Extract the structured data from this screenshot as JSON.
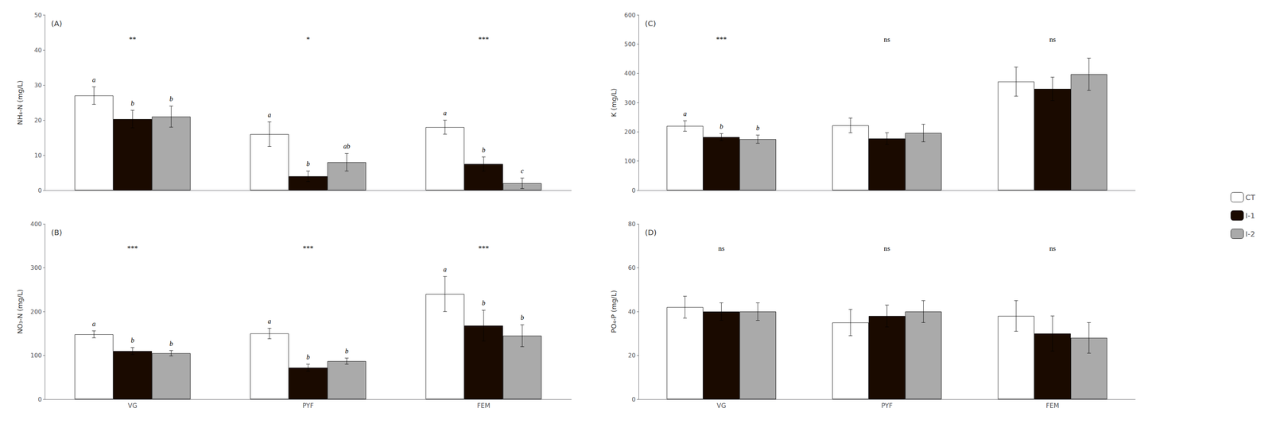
{
  "chart_data": [
    {
      "type": "bar",
      "title": "(A)",
      "ylabel": "NH₄-N (mg/L)",
      "categories": [
        null,
        null,
        null
      ],
      "series": [
        {
          "name": "CT",
          "color": "#FFFFFF",
          "values": [
            27.0,
            16.0,
            18.0
          ],
          "errors": [
            2.5,
            3.5,
            2.0
          ],
          "letters": [
            "a",
            "a",
            "a"
          ]
        },
        {
          "name": "I-1",
          "color": "#1a0a00",
          "values": [
            20.3,
            4.0,
            7.5
          ],
          "errors": [
            2.5,
            1.5,
            2.0
          ],
          "letters": [
            "b",
            "b",
            "b"
          ]
        },
        {
          "name": "I-2",
          "color": "#aaaaaa",
          "values": [
            21.0,
            8.0,
            2.0
          ],
          "errors": [
            3.0,
            2.5,
            1.5
          ],
          "letters": [
            "b",
            "ab",
            "c"
          ]
        }
      ],
      "significance": [
        "**",
        "*",
        "***"
      ],
      "ylim": [
        0,
        50
      ],
      "yticks": [
        0,
        10,
        20,
        30,
        40,
        50
      ],
      "grid": false,
      "legend": "right"
    },
    {
      "type": "bar",
      "title": "(B)",
      "ylabel": "NO₃-N (mg/L)",
      "categories": [
        "VG",
        "PYF",
        "FEM"
      ],
      "series": [
        {
          "name": "CT",
          "color": "#FFFFFF",
          "values": [
            148,
            150,
            240
          ],
          "errors": [
            8,
            12,
            40
          ],
          "letters": [
            "a",
            "a",
            "a"
          ]
        },
        {
          "name": "I-1",
          "color": "#1a0a00",
          "values": [
            110,
            72,
            168
          ],
          "errors": [
            8,
            8,
            35
          ],
          "letters": [
            "b",
            "b",
            "b"
          ]
        },
        {
          "name": "I-2",
          "color": "#aaaaaa",
          "values": [
            105,
            87,
            145
          ],
          "errors": [
            6,
            7,
            25
          ],
          "letters": [
            "b",
            "b",
            "b"
          ]
        }
      ],
      "significance": [
        "***",
        "***",
        "***"
      ],
      "ylim": [
        0,
        400
      ],
      "yticks": [
        0,
        100,
        200,
        300,
        400
      ],
      "grid": false,
      "legend": "right"
    },
    {
      "type": "bar",
      "title": "(C)",
      "ylabel": "K (mg/L)",
      "categories": [
        null,
        null,
        null
      ],
      "series": [
        {
          "name": "CT",
          "color": "#FFFFFF",
          "values": [
            220,
            222,
            372
          ],
          "errors": [
            18,
            25,
            50
          ],
          "letters": [
            "a",
            null,
            null
          ]
        },
        {
          "name": "I-1",
          "color": "#1a0a00",
          "values": [
            182,
            177,
            347
          ],
          "errors": [
            12,
            20,
            40
          ],
          "letters": [
            "b",
            null,
            null
          ]
        },
        {
          "name": "I-2",
          "color": "#aaaaaa",
          "values": [
            175,
            196,
            397
          ],
          "errors": [
            14,
            30,
            55
          ],
          "letters": [
            "b",
            null,
            null
          ]
        }
      ],
      "significance": [
        "***",
        "ns",
        "ns"
      ],
      "ylim": [
        0,
        600
      ],
      "yticks": [
        0,
        100,
        200,
        300,
        400,
        500,
        600
      ],
      "grid": false,
      "legend": "right"
    },
    {
      "type": "bar",
      "title": "(D)",
      "ylabel": "PO₄-P (mg/L)",
      "categories": [
        "VG",
        "PYF",
        "FEM"
      ],
      "series": [
        {
          "name": "CT",
          "color": "#FFFFFF",
          "values": [
            42,
            35,
            38
          ],
          "errors": [
            5,
            6,
            7
          ]
        },
        {
          "name": "I-1",
          "color": "#1a0a00",
          "values": [
            40,
            38,
            30
          ],
          "errors": [
            4,
            5,
            8
          ]
        },
        {
          "name": "I-2",
          "color": "#aaaaaa",
          "values": [
            40,
            40,
            28
          ],
          "errors": [
            4,
            5,
            7
          ]
        }
      ],
      "significance": [
        "ns",
        "ns",
        "ns"
      ],
      "ylim": [
        0,
        80
      ],
      "yticks": [
        0,
        20,
        40,
        60,
        80
      ],
      "grid": false,
      "legend": "right"
    }
  ]
}
